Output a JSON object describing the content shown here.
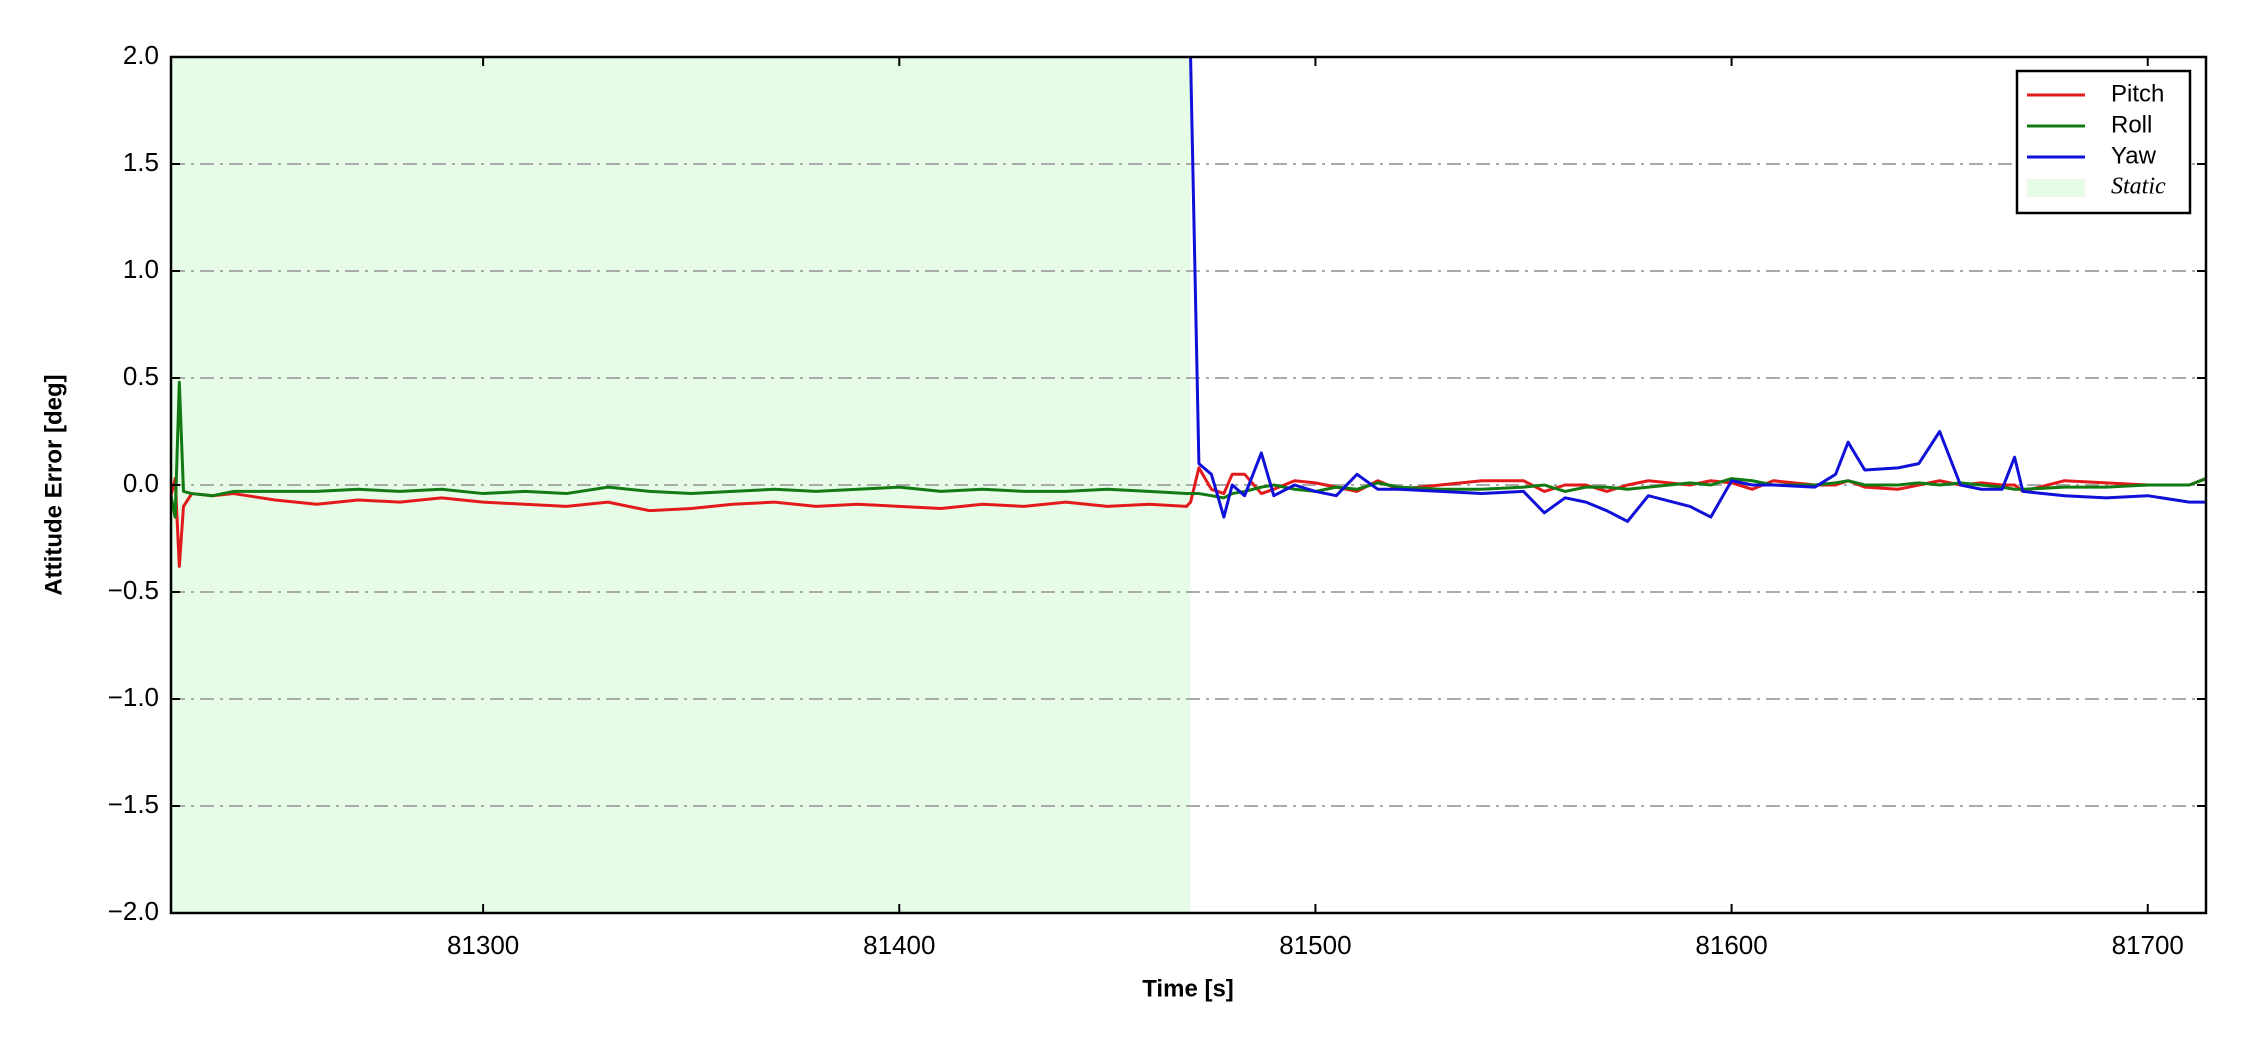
{
  "chart_data": {
    "type": "line",
    "xlabel": "Time [s]",
    "ylabel": "Attitude Error [deg]",
    "x": [
      81225,
      81226,
      81227,
      81228,
      81230,
      81235,
      81240,
      81250,
      81260,
      81270,
      81280,
      81290,
      81300,
      81310,
      81320,
      81330,
      81340,
      81350,
      81360,
      81370,
      81380,
      81390,
      81400,
      81410,
      81420,
      81430,
      81440,
      81450,
      81460,
      81469,
      81470,
      81472,
      81475,
      81478,
      81480,
      81483,
      81487,
      81490,
      81495,
      81500,
      81505,
      81510,
      81515,
      81520,
      81530,
      81540,
      81550,
      81555,
      81560,
      81565,
      81570,
      81575,
      81580,
      81590,
      81595,
      81600,
      81605,
      81610,
      81620,
      81625,
      81628,
      81632,
      81640,
      81645,
      81650,
      81655,
      81660,
      81665,
      81668,
      81670,
      81680,
      81690,
      81700,
      81710,
      81714
    ],
    "series": [
      {
        "name": "Pitch",
        "color": "#e31a1c",
        "values": [
          -0.05,
          0.03,
          -0.38,
          -0.1,
          -0.04,
          -0.05,
          -0.04,
          -0.07,
          -0.09,
          -0.07,
          -0.08,
          -0.06,
          -0.08,
          -0.09,
          -0.1,
          -0.08,
          -0.12,
          -0.11,
          -0.09,
          -0.08,
          -0.1,
          -0.09,
          -0.1,
          -0.11,
          -0.09,
          -0.1,
          -0.08,
          -0.1,
          -0.09,
          -0.1,
          -0.08,
          0.08,
          -0.02,
          -0.04,
          0.05,
          0.05,
          -0.04,
          -0.02,
          0.02,
          0.01,
          -0.01,
          -0.03,
          0.02,
          -0.02,
          0.0,
          0.02,
          0.02,
          -0.03,
          0.0,
          0.0,
          -0.03,
          0.0,
          0.02,
          0.0,
          0.02,
          0.01,
          -0.02,
          0.02,
          0.0,
          0.0,
          0.02,
          -0.01,
          -0.02,
          0.0,
          0.02,
          0.0,
          0.01,
          0.0,
          0.0,
          -0.03,
          0.02,
          0.01,
          0.0,
          0.0,
          0.03
        ]
      },
      {
        "name": "Roll",
        "color": "#127a12",
        "values": [
          -0.05,
          -0.15,
          0.48,
          -0.03,
          -0.04,
          -0.05,
          -0.03,
          -0.03,
          -0.03,
          -0.02,
          -0.03,
          -0.02,
          -0.04,
          -0.03,
          -0.04,
          -0.01,
          -0.03,
          -0.04,
          -0.03,
          -0.02,
          -0.03,
          -0.02,
          -0.01,
          -0.03,
          -0.02,
          -0.03,
          -0.03,
          -0.02,
          -0.03,
          -0.04,
          -0.04,
          -0.04,
          -0.05,
          -0.06,
          -0.04,
          -0.03,
          -0.01,
          0.0,
          -0.02,
          -0.03,
          -0.01,
          -0.02,
          0.01,
          -0.01,
          -0.02,
          -0.02,
          -0.01,
          0.0,
          -0.03,
          -0.01,
          -0.01,
          -0.02,
          -0.01,
          0.01,
          0.0,
          0.03,
          0.02,
          0.0,
          0.0,
          0.01,
          0.02,
          0.0,
          0.0,
          0.01,
          0.0,
          0.01,
          0.0,
          -0.01,
          -0.02,
          -0.02,
          -0.01,
          -0.01,
          0.0,
          0.0,
          0.03
        ]
      },
      {
        "name": "Yaw",
        "color": "#1010d8",
        "values": [
          null,
          null,
          null,
          null,
          null,
          null,
          null,
          null,
          null,
          null,
          null,
          null,
          null,
          null,
          null,
          null,
          null,
          null,
          null,
          null,
          null,
          null,
          null,
          null,
          null,
          null,
          null,
          null,
          null,
          null,
          2.0,
          0.1,
          0.05,
          -0.15,
          0.0,
          -0.05,
          0.15,
          -0.05,
          0.0,
          -0.03,
          -0.05,
          0.05,
          -0.02,
          -0.02,
          -0.03,
          -0.04,
          -0.03,
          -0.13,
          -0.06,
          -0.08,
          -0.12,
          -0.17,
          -0.05,
          -0.1,
          -0.15,
          0.02,
          0.0,
          0.0,
          -0.01,
          0.05,
          0.2,
          0.07,
          0.08,
          0.1,
          0.25,
          0.0,
          -0.02,
          -0.02,
          0.13,
          -0.03,
          -0.05,
          -0.06,
          -0.05,
          -0.08,
          -0.08
        ]
      }
    ],
    "shaded_region": {
      "name": "Static",
      "xlim": [
        81225,
        81470
      ],
      "color": "#e6fce6"
    },
    "xlim": [
      81225,
      81714
    ],
    "xticks": [
      81300,
      81400,
      81500,
      81600,
      81700
    ],
    "ylim": [
      -2,
      2
    ],
    "yticks": [
      {
        "value": -2,
        "label": "−2.0"
      },
      {
        "value": -1.5,
        "label": "−1.5"
      },
      {
        "value": -1,
        "label": "−1.0"
      },
      {
        "value": -0.5,
        "label": "−0.5"
      },
      {
        "value": 0,
        "label": "0.0"
      },
      {
        "value": 0.5,
        "label": "0.5"
      },
      {
        "value": 1,
        "label": "1.0"
      },
      {
        "value": 1.5,
        "label": "1.5"
      },
      {
        "value": 2,
        "label": "2.0"
      }
    ],
    "grid": true,
    "legend": "upper right"
  }
}
